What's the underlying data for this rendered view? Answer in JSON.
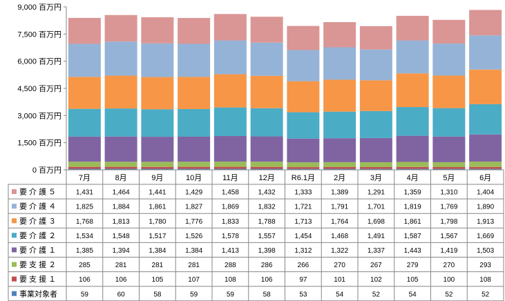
{
  "chart_data": {
    "type": "bar",
    "stacked": true,
    "categories": [
      "7月",
      "8月",
      "9月",
      "10月",
      "11月",
      "12月",
      "R6.1月",
      "2月",
      "3月",
      "4月",
      "5月",
      "6月"
    ],
    "yunit": "百万円",
    "ylim": [
      0,
      9000
    ],
    "yticks": [
      0,
      1500,
      3000,
      4500,
      6000,
      7500,
      9000
    ],
    "ytick_labels": [
      "0 百万円",
      "1,500 百万円",
      "3,000 百万円",
      "4,500 百万円",
      "6,000 百万円",
      "7,500 百万円",
      "9,000 百万円"
    ],
    "grid": false,
    "legend": "data-table-left",
    "series": [
      {
        "name": "事業対象者",
        "color": "#4f81bd",
        "values": [
          59,
          60,
          58,
          59,
          59,
          58,
          53,
          54,
          52,
          54,
          52,
          52
        ]
      },
      {
        "name": "要 支 援 １",
        "color": "#c0504d",
        "values": [
          106,
          106,
          105,
          107,
          108,
          106,
          97,
          101,
          102,
          105,
          100,
          108
        ]
      },
      {
        "name": "要 支 援 ２",
        "color": "#9bbb59",
        "values": [
          285,
          281,
          281,
          281,
          288,
          286,
          266,
          270,
          267,
          279,
          270,
          293
        ]
      },
      {
        "name": "要 介 護 １",
        "color": "#8064a2",
        "values": [
          1385,
          1394,
          1384,
          1384,
          1413,
          1398,
          1312,
          1322,
          1337,
          1443,
          1419,
          1503
        ]
      },
      {
        "name": "要 介 護 ２",
        "color": "#4bacc6",
        "values": [
          1534,
          1548,
          1517,
          1526,
          1578,
          1557,
          1454,
          1468,
          1491,
          1587,
          1567,
          1669
        ]
      },
      {
        "name": "要 介 護 ３",
        "color": "#f79646",
        "values": [
          1768,
          1813,
          1780,
          1776,
          1833,
          1788,
          1713,
          1764,
          1698,
          1861,
          1798,
          1913
        ]
      },
      {
        "name": "要 介 護 ４",
        "color": "#95b3d7",
        "values": [
          1825,
          1884,
          1861,
          1827,
          1869,
          1832,
          1721,
          1791,
          1701,
          1819,
          1769,
          1890
        ]
      },
      {
        "name": "要 介 護 ５",
        "color": "#da9694",
        "values": [
          1431,
          1464,
          1441,
          1429,
          1458,
          1432,
          1333,
          1389,
          1291,
          1359,
          1310,
          1404
        ]
      }
    ]
  }
}
